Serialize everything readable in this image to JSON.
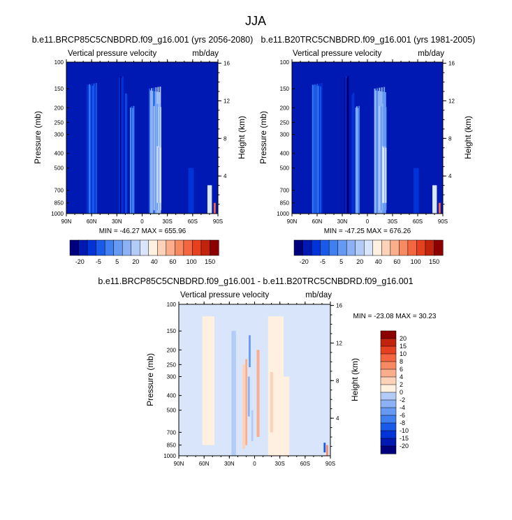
{
  "figure": {
    "title": "JJA"
  },
  "colors": {
    "diverging": [
      "#00007f",
      "#0019b2",
      "#0033d8",
      "#1a5ae8",
      "#3f7fef",
      "#6699f2",
      "#8cb2f5",
      "#b2ccf7",
      "#d8e5fa",
      "#fff0e0",
      "#fcd2b8",
      "#faae8c",
      "#f78a62",
      "#f4663f",
      "#e5401f",
      "#c1230d",
      "#8c0000"
    ],
    "axis": "#000000"
  },
  "chart_data": [
    {
      "id": "panel-a",
      "type": "heatmap",
      "title": "b.e11.BRCP85C5CNBDRD.f09_g16.001 (yrs 2056-2080)",
      "left_label": "Vertical pressure velocity",
      "right_label": "mb/day",
      "xlabel": "",
      "ylabel": "Pressure (mb)",
      "ylabel_right": "Height (km)",
      "x_ticks": [
        "90N",
        "60N",
        "30N",
        "0",
        "30S",
        "60S",
        "90S"
      ],
      "y_ticks": [
        "100",
        "150",
        "200",
        "250",
        "300",
        "400",
        "500",
        "700",
        "850",
        "1000"
      ],
      "y_right_ticks": [
        "16",
        "12",
        "8",
        "4"
      ],
      "ylim": [
        1000,
        100
      ],
      "y_scale": "log",
      "stats": "MIN = -46.27   MAX = 655.96",
      "base_level": 1,
      "features": [
        {
          "lat": 60,
          "width": 12,
          "level": 3,
          "top": 130,
          "bottom": 1000,
          "amp": 2
        },
        {
          "lat": 25,
          "width": 5,
          "level": 0,
          "top": 115,
          "bottom": 1000,
          "amp": 6
        },
        {
          "lat": 18,
          "width": 4,
          "level": 2,
          "top": 150,
          "bottom": 1000,
          "amp": 2
        },
        {
          "lat": 12,
          "width": 5,
          "level": 4,
          "top": 185,
          "bottom": 1000,
          "amp": 3
        },
        {
          "lat": -15,
          "width": 14,
          "level": 5,
          "top": 140,
          "bottom": 1000,
          "amp": 3
        },
        {
          "lat": -18,
          "width": 9,
          "level": 6,
          "top": 180,
          "bottom": 950,
          "amp": 2
        },
        {
          "lat": -20,
          "width": 5,
          "level": 7,
          "top": 350,
          "bottom": 850,
          "amp": 2
        },
        {
          "lat": -58,
          "width": 6,
          "level": 2,
          "top": 500,
          "bottom": 1000,
          "amp": 0
        },
        {
          "lat": -80,
          "width": 5,
          "level": 8,
          "top": 650,
          "bottom": 1000,
          "amp": 0
        },
        {
          "lat": -86,
          "width": 2,
          "level": 13,
          "top": 850,
          "bottom": 1000,
          "amp": 0
        }
      ],
      "colorbar": {
        "orientation": "horizontal",
        "labels": [
          "-20",
          "-5",
          "5",
          "20",
          "40",
          "60",
          "100",
          "150"
        ]
      }
    },
    {
      "id": "panel-b",
      "type": "heatmap",
      "title": "b.e11.B20TRC5CNBDRD.f09_g16.001 (yrs 1981-2005)",
      "left_label": "Vertical pressure velocity",
      "right_label": "mb/day",
      "xlabel": "",
      "ylabel": "Pressure (mb)",
      "ylabel_right": "Height (km)",
      "x_ticks": [
        "90N",
        "60N",
        "30N",
        "0",
        "30S",
        "60S",
        "90S"
      ],
      "y_ticks": [
        "100",
        "150",
        "200",
        "250",
        "300",
        "400",
        "500",
        "700",
        "850",
        "1000"
      ],
      "y_right_ticks": [
        "16",
        "12",
        "8",
        "4"
      ],
      "ylim": [
        1000,
        100
      ],
      "y_scale": "log",
      "stats": "MIN = -47.25   MAX = 676.26",
      "base_level": 1,
      "features": [
        {
          "lat": 60,
          "width": 12,
          "level": 3,
          "top": 130,
          "bottom": 1000,
          "amp": 2
        },
        {
          "lat": 25,
          "width": 5,
          "level": 0,
          "top": 115,
          "bottom": 1000,
          "amp": 6
        },
        {
          "lat": 18,
          "width": 4,
          "level": 2,
          "top": 150,
          "bottom": 1000,
          "amp": 2
        },
        {
          "lat": 12,
          "width": 5,
          "level": 4,
          "top": 185,
          "bottom": 1000,
          "amp": 3
        },
        {
          "lat": -15,
          "width": 14,
          "level": 5,
          "top": 140,
          "bottom": 1000,
          "amp": 3
        },
        {
          "lat": -18,
          "width": 9,
          "level": 6,
          "top": 180,
          "bottom": 950,
          "amp": 2
        },
        {
          "lat": -20,
          "width": 5,
          "level": 7,
          "top": 350,
          "bottom": 850,
          "amp": 2
        },
        {
          "lat": -58,
          "width": 6,
          "level": 2,
          "top": 500,
          "bottom": 1000,
          "amp": 0
        },
        {
          "lat": -80,
          "width": 5,
          "level": 8,
          "top": 650,
          "bottom": 1000,
          "amp": 0
        },
        {
          "lat": -86,
          "width": 2,
          "level": 13,
          "top": 850,
          "bottom": 1000,
          "amp": 0
        }
      ],
      "colorbar": {
        "orientation": "horizontal",
        "labels": [
          "-20",
          "-5",
          "5",
          "20",
          "40",
          "60",
          "100",
          "150"
        ]
      }
    },
    {
      "id": "panel-c",
      "type": "heatmap",
      "title": "b.e11.BRCP85C5CNBDRD.f09_g16.001 - b.e11.B20TRC5CNBDRD.f09_g16.001",
      "left_label": "Vertical pressure velocity",
      "right_label": "mb/day",
      "xlabel": "",
      "ylabel": "Pressure (mb)",
      "ylabel_right": "Height (km)",
      "x_ticks": [
        "90N",
        "60N",
        "30N",
        "0",
        "30S",
        "60S",
        "90S"
      ],
      "y_ticks": [
        "100",
        "150",
        "200",
        "250",
        "300",
        "400",
        "500",
        "700",
        "850",
        "1000"
      ],
      "y_right_ticks": [
        "16",
        "12",
        "8",
        "4"
      ],
      "ylim": [
        1000,
        100
      ],
      "y_scale": "log",
      "stats": "MIN = -23.08   MAX =  30.23",
      "base_level": 8,
      "features": [
        {
          "lat": 55,
          "width": 14,
          "level": 9,
          "top": 120,
          "bottom": 850,
          "amp": 0
        },
        {
          "lat": -25,
          "width": 18,
          "level": 9,
          "top": 120,
          "bottom": 1000,
          "amp": 0
        },
        {
          "lat": -35,
          "width": 12,
          "level": 9,
          "top": 300,
          "bottom": 1000,
          "amp": 0
        },
        {
          "lat": 10,
          "width": 2,
          "level": 11,
          "top": 230,
          "bottom": 850,
          "amp": 0
        },
        {
          "lat": 13,
          "width": 3,
          "level": 10,
          "top": 250,
          "bottom": 900,
          "amp": 0
        },
        {
          "lat": -4,
          "width": 3,
          "level": 11,
          "top": 200,
          "bottom": 750,
          "amp": 0
        },
        {
          "lat": -20,
          "width": 3,
          "level": 10,
          "top": 280,
          "bottom": 700,
          "amp": 0
        },
        {
          "lat": 6,
          "width": 2,
          "level": 5,
          "top": 160,
          "bottom": 260,
          "amp": 0
        },
        {
          "lat": 7,
          "width": 2,
          "level": 6,
          "top": 300,
          "bottom": 550,
          "amp": 0
        },
        {
          "lat": 25,
          "width": 5,
          "level": 7,
          "top": 150,
          "bottom": 1000,
          "amp": 0
        },
        {
          "lat": 3,
          "width": 2,
          "level": 7,
          "top": 500,
          "bottom": 800,
          "amp": 0
        },
        {
          "lat": -83,
          "width": 2,
          "level": 3,
          "top": 820,
          "bottom": 950,
          "amp": 0
        },
        {
          "lat": -86,
          "width": 2,
          "level": 12,
          "top": 850,
          "bottom": 1000,
          "amp": 0
        }
      ],
      "colorbar": {
        "orientation": "vertical",
        "labels": [
          "20",
          "15",
          "10",
          "8",
          "6",
          "4",
          "2",
          "0",
          "-2",
          "-4",
          "-6",
          "-8",
          "-10",
          "-15",
          "-20"
        ]
      }
    }
  ]
}
